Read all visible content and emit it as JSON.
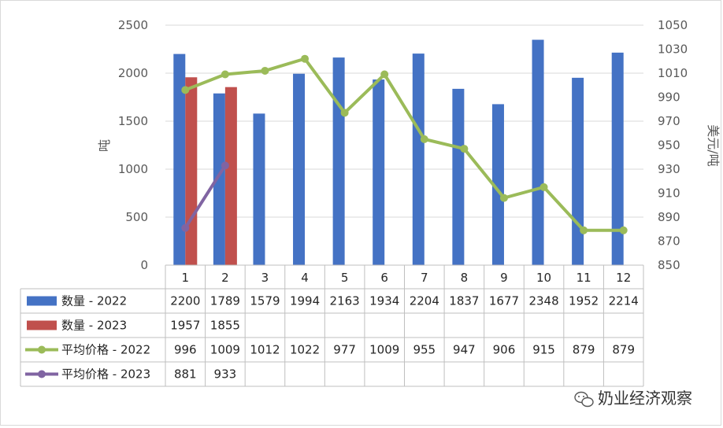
{
  "chart_data": {
    "type": "bar",
    "categories": [
      "1",
      "2",
      "3",
      "4",
      "5",
      "6",
      "7",
      "8",
      "9",
      "10",
      "11",
      "12"
    ],
    "ylabel": "吨",
    "ylabel_right": "美元/吨",
    "ylim": [
      0,
      2500
    ],
    "ylim_right": [
      850,
      1050
    ],
    "yticks": [
      "0",
      "500",
      "1000",
      "1500",
      "2000",
      "2500"
    ],
    "yticks_right": [
      "850",
      "870",
      "890",
      "910",
      "930",
      "950",
      "970",
      "990",
      "1010",
      "1030",
      "1050"
    ],
    "grid": true,
    "legend": "data-table-below",
    "series": [
      {
        "name": "数量 - 2022",
        "type": "bar",
        "axis": "left",
        "color": "#4472c4",
        "values": [
          2200,
          1789,
          1579,
          1994,
          2163,
          1934,
          2204,
          1837,
          1677,
          2348,
          1952,
          2214
        ]
      },
      {
        "name": "数量 - 2023",
        "type": "bar",
        "axis": "left",
        "color": "#c0504d",
        "values": [
          1957,
          1855,
          null,
          null,
          null,
          null,
          null,
          null,
          null,
          null,
          null,
          null
        ]
      },
      {
        "name": "平均价格 - 2022",
        "type": "line",
        "axis": "right",
        "color": "#9bbb59",
        "values": [
          996,
          1009,
          1012,
          1022,
          977,
          1009,
          955,
          947,
          906,
          915,
          879,
          879
        ]
      },
      {
        "name": "平均价格 - 2023",
        "type": "line",
        "axis": "right",
        "color": "#8064a2",
        "values": [
          881,
          933,
          null,
          null,
          null,
          null,
          null,
          null,
          null,
          null,
          null,
          null
        ]
      }
    ]
  },
  "watermark": "奶业经济观察",
  "watermark_icon": "wechat-icon"
}
